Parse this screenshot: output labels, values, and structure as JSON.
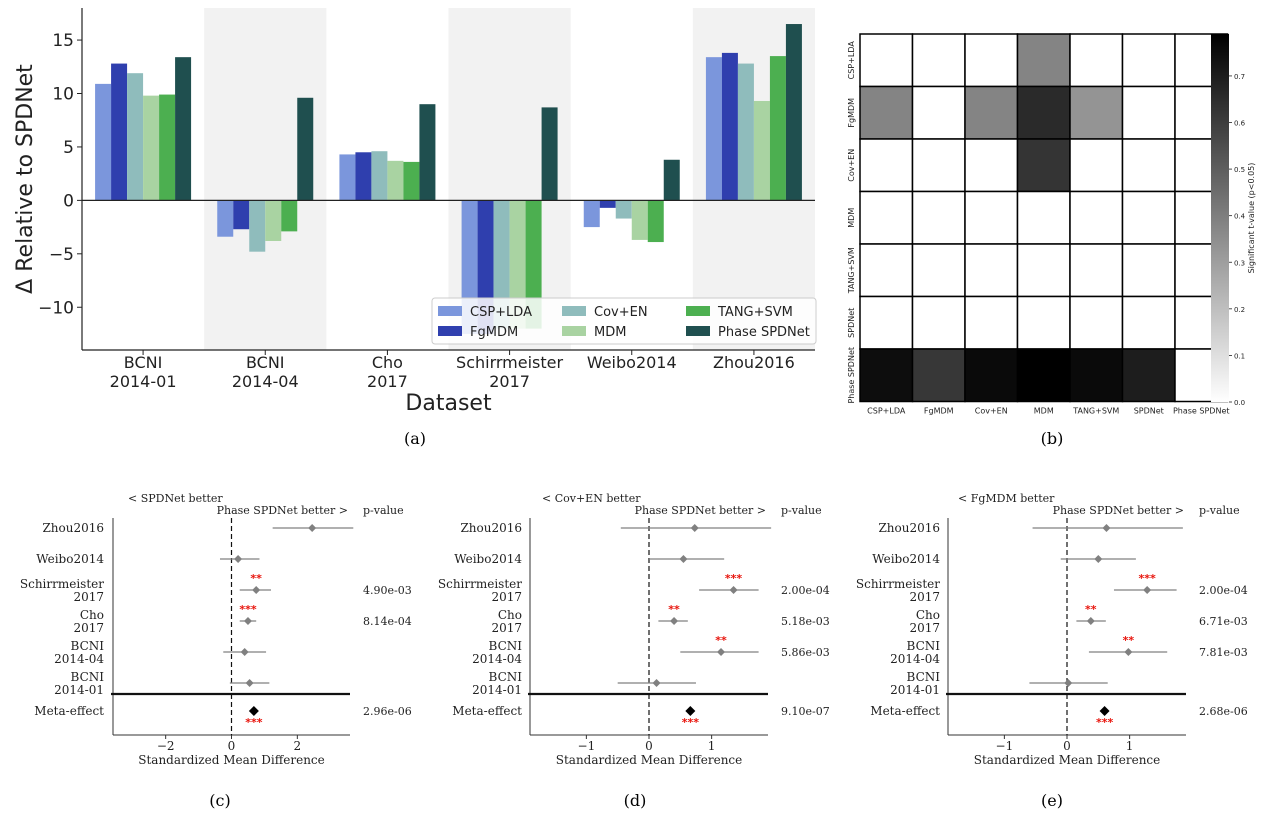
{
  "colors": {
    "CSP+LDA": "#7b96dc",
    "FgMDM": "#2f3fae",
    "Cov+EN": "#8fbcbc",
    "MDM": "#a9d3a2",
    "TANG+SVM": "#4caf50",
    "Phase SPDNet": "#1f4f4f",
    "shade": "#f2f2f2",
    "diamond": "#808080",
    "ci_line": "#808080",
    "stars": "#e8140c"
  },
  "chart_data": [
    {
      "panel": "(a)",
      "type": "bar",
      "xlabel": "Dataset",
      "ylabel": "Δ Relative to SPDNet",
      "ylim": [
        -14,
        18
      ],
      "yticks": [
        -10,
        -5,
        0,
        5,
        10,
        15
      ],
      "categories": [
        [
          "BCNI",
          "2014-01"
        ],
        [
          "BCNI",
          "2014-04"
        ],
        [
          "Cho",
          "2017"
        ],
        [
          "Schirrmeister",
          "2017"
        ],
        [
          "Weibo2014"
        ],
        [
          "Zhou2016"
        ]
      ],
      "shaded_categories": [
        1,
        3,
        5
      ],
      "legend_position": "lower right",
      "legend_order": [
        "CSP+LDA",
        "FgMDM",
        "Cov+EN",
        "MDM",
        "TANG+SVM",
        "Phase SPDNet"
      ],
      "series": [
        {
          "name": "CSP+LDA",
          "values": [
            10.9,
            -3.4,
            4.3,
            -12.5,
            -2.5,
            13.4
          ]
        },
        {
          "name": "FgMDM",
          "values": [
            12.8,
            -2.7,
            4.5,
            -12.5,
            -0.7,
            13.8
          ]
        },
        {
          "name": "Cov+EN",
          "values": [
            11.9,
            -4.8,
            4.6,
            -12.0,
            -1.7,
            12.8
          ]
        },
        {
          "name": "MDM",
          "values": [
            9.8,
            -3.8,
            3.7,
            -12.0,
            -3.7,
            9.3
          ]
        },
        {
          "name": "TANG+SVM",
          "values": [
            9.9,
            -2.9,
            3.6,
            -12.0,
            -3.9,
            13.5
          ]
        },
        {
          "name": "Phase SPDNet",
          "values": [
            13.4,
            9.6,
            9.0,
            8.7,
            3.8,
            16.5
          ]
        }
      ]
    },
    {
      "panel": "(b)",
      "type": "heatmap",
      "labels": [
        "CSP+LDA",
        "FgMDM",
        "Cov+EN",
        "MDM",
        "TANG+SVM",
        "SPDNet",
        "Phase SPDNet"
      ],
      "values": [
        [
          0,
          0,
          0,
          0.38,
          0,
          0,
          0
        ],
        [
          0.38,
          0,
          0.38,
          0.66,
          0.33,
          0,
          0
        ],
        [
          0,
          0,
          0,
          0.63,
          0,
          0,
          0
        ],
        [
          0,
          0,
          0,
          0,
          0,
          0,
          0
        ],
        [
          0,
          0,
          0,
          0,
          0,
          0,
          0
        ],
        [
          0,
          0,
          0,
          0,
          0,
          0,
          0
        ],
        [
          0.75,
          0.62,
          0.76,
          0.79,
          0.76,
          0.7,
          0
        ]
      ],
      "colorbar_label": "Significant t-value (p<0.05)",
      "colorbar_range": [
        0,
        0.79
      ],
      "colorbar_ticks": [
        "0.0",
        "0.1",
        "0.2",
        "0.3",
        "0.4",
        "0.5",
        "0.6",
        "0.7"
      ]
    },
    {
      "panel": "(c)",
      "type": "scatter",
      "subtype": "forest",
      "left_label": "< SPDNet better",
      "right_label": "Phase SPDNet better >",
      "pvalue_header": "p-value",
      "xlabel": "Standardized Mean Difference",
      "xlim": [
        -3.6,
        3.6
      ],
      "xticks": [
        -2,
        0,
        2
      ],
      "xticklabels": [
        "−2",
        "0",
        "2"
      ],
      "rows": [
        {
          "label": [
            "Zhou2016"
          ],
          "smd": 2.45,
          "ci": [
            1.25,
            3.7
          ],
          "stars": "",
          "pvalue": ""
        },
        {
          "label": [
            "Weibo2014"
          ],
          "smd": 0.2,
          "ci": [
            -0.35,
            0.85
          ],
          "stars": "",
          "pvalue": ""
        },
        {
          "label": [
            "Schirrmeister",
            "2017"
          ],
          "smd": 0.75,
          "ci": [
            0.25,
            1.2
          ],
          "stars": "**",
          "pvalue": "4.90e-03"
        },
        {
          "label": [
            "Cho",
            "2017"
          ],
          "smd": 0.5,
          "ci": [
            0.25,
            0.75
          ],
          "stars": "***",
          "pvalue": "8.14e-04"
        },
        {
          "label": [
            "BCNI",
            "2014-04"
          ],
          "smd": 0.4,
          "ci": [
            -0.25,
            1.05
          ],
          "stars": "",
          "pvalue": ""
        },
        {
          "label": [
            "BCNI",
            "2014-01"
          ],
          "smd": 0.55,
          "ci": [
            -0.05,
            1.15
          ],
          "stars": "",
          "pvalue": ""
        }
      ],
      "meta": {
        "label": "Meta-effect",
        "smd": 0.68,
        "stars": "***",
        "pvalue": "2.96e-06"
      }
    },
    {
      "panel": "(d)",
      "type": "scatter",
      "subtype": "forest",
      "left_label": "< Cov+EN better",
      "right_label": "Phase SPDNet better >",
      "pvalue_header": "p-value",
      "xlabel": "Standardized Mean Difference",
      "xlim": [
        -1.9,
        1.9
      ],
      "xticks": [
        -1,
        0,
        1
      ],
      "xticklabels": [
        "−1",
        "0",
        "1"
      ],
      "rows": [
        {
          "label": [
            "Zhou2016"
          ],
          "smd": 0.73,
          "ci": [
            -0.45,
            1.95
          ],
          "stars": "",
          "pvalue": ""
        },
        {
          "label": [
            "Weibo2014"
          ],
          "smd": 0.55,
          "ci": [
            0.0,
            1.2
          ],
          "stars": "",
          "pvalue": ""
        },
        {
          "label": [
            "Schirrmeister",
            "2017"
          ],
          "smd": 1.35,
          "ci": [
            0.8,
            1.75
          ],
          "stars": "***",
          "pvalue": "2.00e-04"
        },
        {
          "label": [
            "Cho",
            "2017"
          ],
          "smd": 0.4,
          "ci": [
            0.15,
            0.62
          ],
          "stars": "**",
          "pvalue": "5.18e-03"
        },
        {
          "label": [
            "BCNI",
            "2014-04"
          ],
          "smd": 1.15,
          "ci": [
            0.5,
            1.75
          ],
          "stars": "**",
          "pvalue": "5.86e-03"
        },
        {
          "label": [
            "BCNI",
            "2014-01"
          ],
          "smd": 0.12,
          "ci": [
            -0.5,
            0.75
          ],
          "stars": "",
          "pvalue": ""
        }
      ],
      "meta": {
        "label": "Meta-effect",
        "smd": 0.66,
        "stars": "***",
        "pvalue": "9.10e-07"
      }
    },
    {
      "panel": "(e)",
      "type": "scatter",
      "subtype": "forest",
      "left_label": "< FgMDM better",
      "right_label": "Phase SPDNet better >",
      "pvalue_header": "p-value",
      "xlabel": "Standardized Mean Difference",
      "xlim": [
        -1.9,
        1.9
      ],
      "xticks": [
        -1,
        0,
        1
      ],
      "xticklabels": [
        "−1",
        "0",
        "1"
      ],
      "rows": [
        {
          "label": [
            "Zhou2016"
          ],
          "smd": 0.63,
          "ci": [
            -0.55,
            1.85
          ],
          "stars": "",
          "pvalue": ""
        },
        {
          "label": [
            "Weibo2014"
          ],
          "smd": 0.5,
          "ci": [
            -0.1,
            1.1
          ],
          "stars": "",
          "pvalue": ""
        },
        {
          "label": [
            "Schirrmeister",
            "2017"
          ],
          "smd": 1.28,
          "ci": [
            0.75,
            1.75
          ],
          "stars": "***",
          "pvalue": "2.00e-04"
        },
        {
          "label": [
            "Cho",
            "2017"
          ],
          "smd": 0.38,
          "ci": [
            0.15,
            0.62
          ],
          "stars": "**",
          "pvalue": "6.71e-03"
        },
        {
          "label": [
            "BCNI",
            "2014-04"
          ],
          "smd": 0.98,
          "ci": [
            0.35,
            1.6
          ],
          "stars": "**",
          "pvalue": "7.81e-03"
        },
        {
          "label": [
            "BCNI",
            "2014-01"
          ],
          "smd": 0.02,
          "ci": [
            -0.6,
            0.65
          ],
          "stars": "",
          "pvalue": ""
        }
      ],
      "meta": {
        "label": "Meta-effect",
        "smd": 0.6,
        "stars": "***",
        "pvalue": "2.68e-06"
      }
    }
  ],
  "captions": [
    "(a)",
    "(b)",
    "(c)",
    "(d)",
    "(e)"
  ]
}
